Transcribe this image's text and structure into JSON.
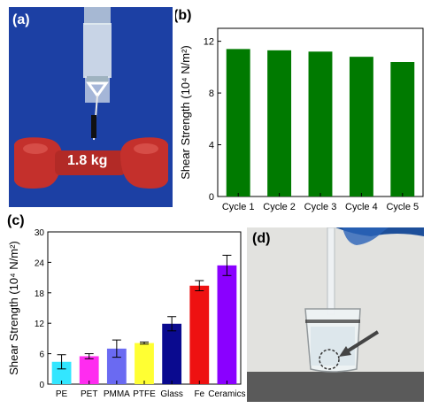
{
  "panels": {
    "a": {
      "label": "(a)",
      "weight_label": "1.8 kg",
      "colors": {
        "background": "#1a3d9e",
        "dumbbell": "#c4302c",
        "strip": "#e6eef2"
      }
    },
    "b": {
      "label": "(b)"
    },
    "c": {
      "label": "(c)"
    },
    "d": {
      "label": "(d)",
      "colors": {
        "background": "#d8d8d4",
        "table": "#5a5a5a",
        "glove": "#1d4f9a"
      }
    }
  },
  "chart_data": [
    {
      "panel": "b",
      "type": "bar",
      "categories": [
        "Cycle 1",
        "Cycle 2",
        "Cycle 3",
        "Cycle 4",
        "Cycle 5"
      ],
      "values": [
        11.4,
        11.3,
        11.2,
        10.8,
        10.4
      ],
      "ylabel": "Shear Strength (10⁴ N/m²)",
      "ylim": [
        0,
        13
      ],
      "yticks": [
        0,
        4,
        8,
        12
      ],
      "colors": [
        "#007a00"
      ],
      "grid": false
    },
    {
      "panel": "c",
      "type": "bar",
      "categories": [
        "PE",
        "PET",
        "PMMA",
        "PTFE",
        "Glass",
        "Fe",
        "Ceramics"
      ],
      "values": [
        4.4,
        5.5,
        7.0,
        8.1,
        11.9,
        19.4,
        23.4
      ],
      "errors": [
        1.4,
        0.5,
        1.7,
        0.2,
        1.4,
        1.0,
        2.0
      ],
      "ylabel": "Shear Strength (10⁴ N/m²)",
      "ylim": [
        0,
        30
      ],
      "yticks": [
        0,
        6,
        12,
        18,
        24,
        30
      ],
      "colors": [
        "#33e6ff",
        "#ff2cf0",
        "#6a6af2",
        "#ffff33",
        "#0a0a8f",
        "#ee1111",
        "#8a00ff"
      ],
      "grid": false
    }
  ]
}
